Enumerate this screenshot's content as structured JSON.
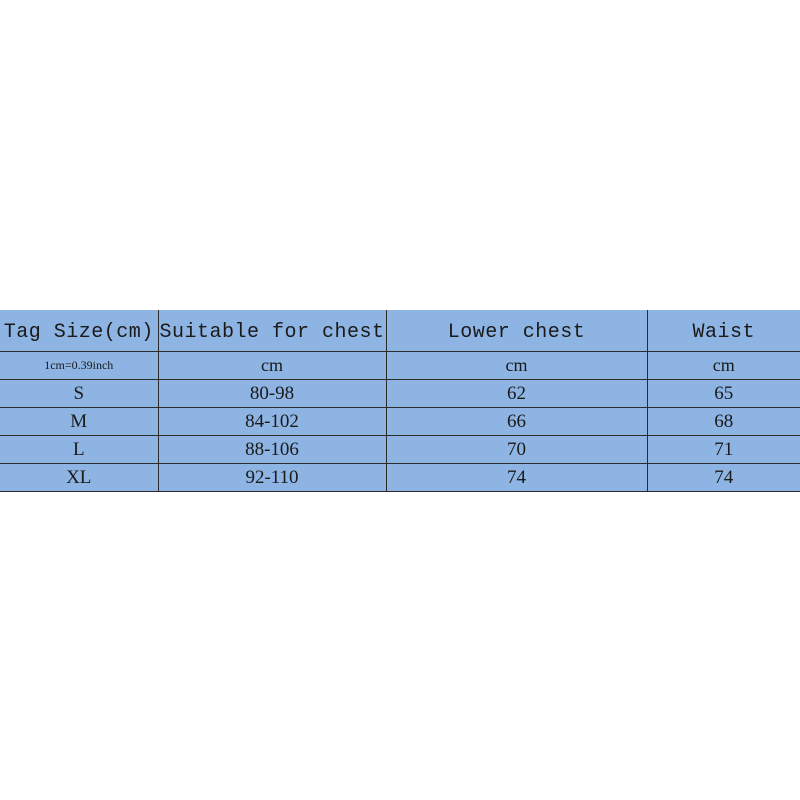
{
  "table": {
    "headers": [
      "Tag Size(cm)",
      "Suitable for chest",
      "Lower chest",
      "Waist"
    ],
    "units": [
      "1cm=0.39inch",
      "cm",
      "cm",
      "cm"
    ],
    "rows": [
      [
        "S",
        "80-98",
        "62",
        "65"
      ],
      [
        "M",
        "84-102",
        "66",
        "68"
      ],
      [
        "L",
        "88-106",
        "70",
        "71"
      ],
      [
        "XL",
        "92-110",
        "74",
        "74"
      ]
    ],
    "background_color": "#8DB4E2"
  }
}
